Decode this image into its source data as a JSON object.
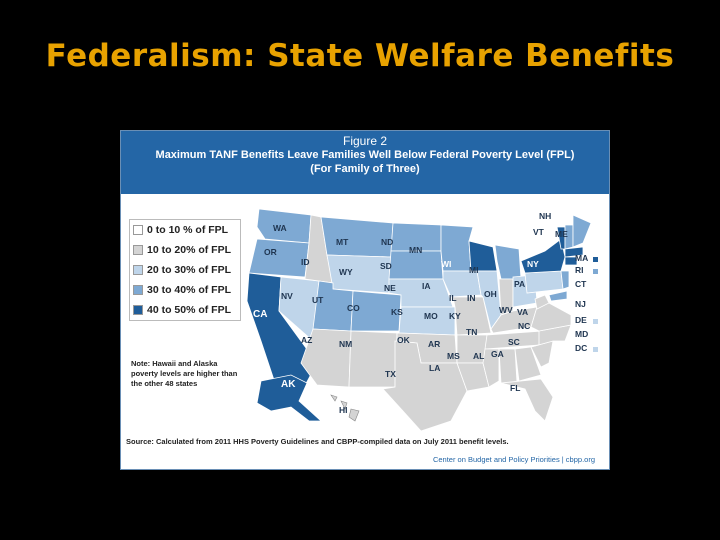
{
  "slide": {
    "title": "Federalism:  State Welfare Benefits"
  },
  "figure": {
    "number": "Figure 2",
    "title_line1": "Maximum TANF Benefits Leave Families Well Below Federal Poverty Level (FPL)",
    "title_line2": "(For Family of Three)",
    "note": "Note: Hawaii and Alaska poverty levels are higher than the other 48 states",
    "source": "Source: Calculated from 2011 HHS Poverty Guidelines and CBPP-compiled data on July 2011 benefit levels.",
    "credit": "Center on Budget and Policy Priorities | cbpp.org"
  },
  "legend": [
    {
      "label": "0 to 10 % of FPL",
      "color": "#ffffff"
    },
    {
      "label": "10 to 20% of FPL",
      "color": "#d4d4d4"
    },
    {
      "label": "20 to 30% of FPL",
      "color": "#bfd5ea"
    },
    {
      "label": "30 to 40% of FPL",
      "color": "#7ea9d3"
    },
    {
      "label": "40 to 50% of FPL",
      "color": "#1f5d99"
    }
  ],
  "states": {
    "WA": "WA",
    "OR": "OR",
    "CA": "CA",
    "NV": "NV",
    "ID": "ID",
    "MT": "MT",
    "WY": "WY",
    "UT": "UT",
    "CO": "CO",
    "AZ": "AZ",
    "NM": "NM",
    "ND": "ND",
    "SD": "SD",
    "NE": "NE",
    "KS": "KS",
    "OK": "OK",
    "TX": "TX",
    "MN": "MN",
    "IA": "IA",
    "MO": "MO",
    "AR": "AR",
    "LA": "LA",
    "WI": "WI",
    "IL": "IL",
    "MI": "MI",
    "IN": "IN",
    "OH": "OH",
    "KY": "KY",
    "TN": "TN",
    "MS": "MS",
    "AL": "AL",
    "GA": "GA",
    "FL": "FL",
    "SC": "SC",
    "NC": "NC",
    "VA": "VA",
    "WV": "WV",
    "PA": "PA",
    "NY": "NY",
    "VT": "VT",
    "NH": "NH",
    "ME": "ME",
    "MA": "MA",
    "RI": "RI",
    "CT": "CT",
    "NJ": "NJ",
    "DE": "DE",
    "MD": "MD",
    "DC": "DC",
    "AK": "AK",
    "HI": "HI"
  },
  "colors": {
    "c0": "#ffffff",
    "c1": "#d4d4d4",
    "c2": "#bfd5ea",
    "c3": "#7ea9d3",
    "c4": "#1f5d99"
  }
}
